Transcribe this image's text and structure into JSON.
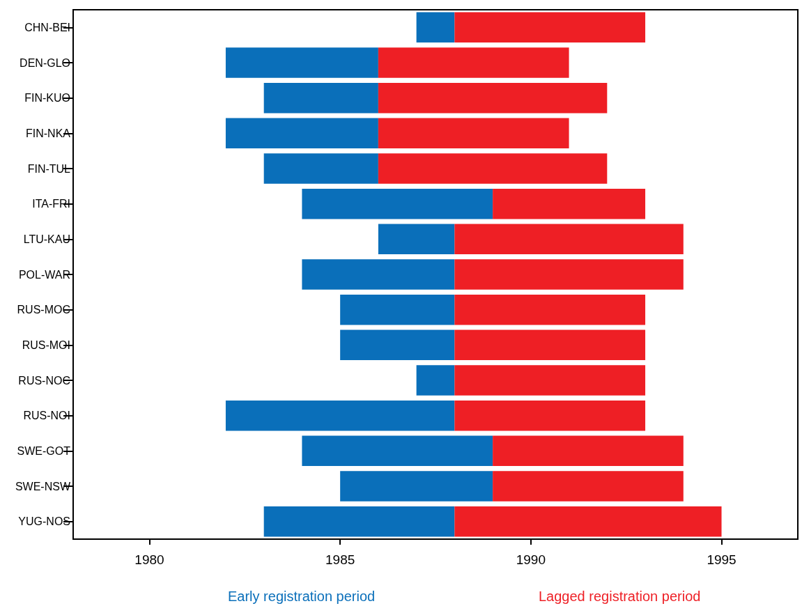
{
  "chart_data": {
    "type": "bar",
    "orientation": "horizontal",
    "categories": [
      "CHN-BEI",
      "DEN-GLO",
      "FIN-KUO",
      "FIN-NKA",
      "FIN-TUL",
      "ITA-FRI",
      "LTU-KAU",
      "POL-WAR",
      "RUS-MOC",
      "RUS-MOI",
      "RUS-NOC",
      "RUS-NOI",
      "SWE-GOT",
      "SWE-NSW",
      "YUG-NOS"
    ],
    "series": [
      {
        "name": "Early registration period",
        "color": "#0a6fba",
        "base": [
          1987,
          1982,
          1983,
          1982,
          1983,
          1984,
          1986,
          1984,
          1985,
          1985,
          1987,
          1982,
          1984,
          1985,
          1983
        ],
        "values": [
          1,
          4,
          3,
          4,
          3,
          5,
          2,
          4,
          3,
          3,
          1,
          6,
          5,
          4,
          5
        ]
      },
      {
        "name": "Lagged registration period",
        "color": "#ee1f25",
        "base": [
          1988,
          1986,
          1986,
          1986,
          1986,
          1989,
          1988,
          1988,
          1988,
          1988,
          1988,
          1988,
          1989,
          1989,
          1988
        ],
        "values": [
          5,
          5,
          6,
          5,
          6,
          4,
          6,
          6,
          5,
          5,
          5,
          5,
          5,
          5,
          7
        ]
      }
    ],
    "xlim": [
      1978,
      1997
    ],
    "xticks": [
      1980,
      1985,
      1990,
      1995
    ],
    "grid": false
  }
}
